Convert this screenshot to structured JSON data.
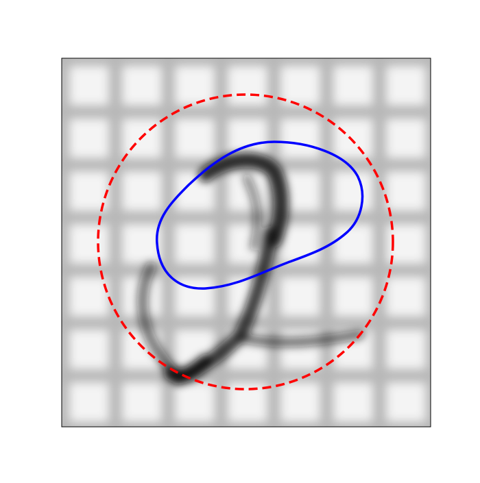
{
  "image": {
    "contour_color": "#0000ff",
    "circle_color": "#ff0000"
  }
}
